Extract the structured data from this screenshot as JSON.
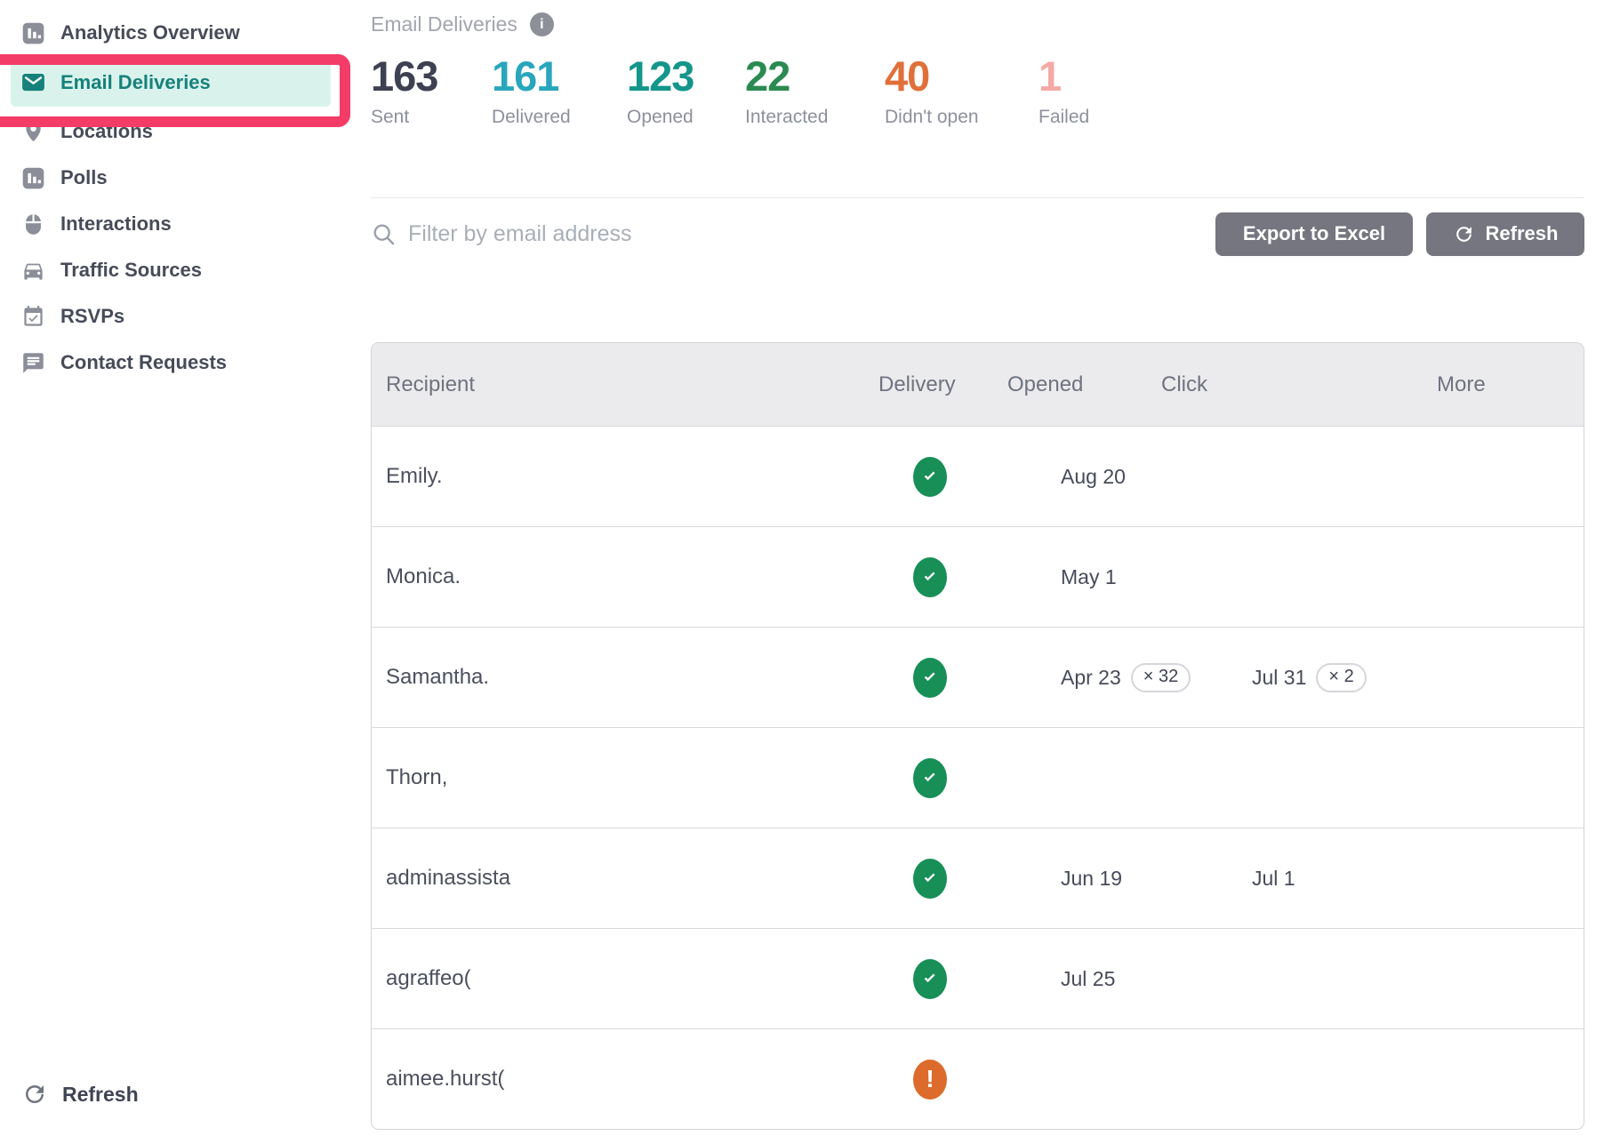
{
  "sidebar": {
    "items": [
      {
        "label": "Analytics Overview",
        "icon": "bar-chart",
        "active": false
      },
      {
        "label": "Email Deliveries",
        "icon": "envelope",
        "active": true
      },
      {
        "label": "Locations",
        "icon": "location-pin",
        "active": false
      },
      {
        "label": "Polls",
        "icon": "bar-chart",
        "active": false
      },
      {
        "label": "Interactions",
        "icon": "mouse",
        "active": false
      },
      {
        "label": "Traffic Sources",
        "icon": "car",
        "active": false
      },
      {
        "label": "RSVPs",
        "icon": "calendar-check",
        "active": false
      },
      {
        "label": "Contact Requests",
        "icon": "chat",
        "active": false
      }
    ],
    "refresh_label": "Refresh"
  },
  "header": {
    "title": "Email Deliveries",
    "info_icon": "info-icon",
    "info_glyph": "i"
  },
  "stats": [
    {
      "value": "163",
      "label": "Sent",
      "color": "#3d4152"
    },
    {
      "value": "161",
      "label": "Delivered",
      "color": "#29a6bc"
    },
    {
      "value": "123",
      "label": "Opened",
      "color": "#14968a"
    },
    {
      "value": "22",
      "label": "Interacted",
      "color": "#2b8a51"
    },
    {
      "value": "40",
      "label": "Didn't open",
      "color": "#e0703a"
    },
    {
      "value": "1",
      "label": "Failed",
      "color": "#f5a9a4"
    }
  ],
  "toolbar": {
    "filter_placeholder": "Filter by email address",
    "export_label": "Export to Excel",
    "refresh_label": "Refresh"
  },
  "table": {
    "columns": [
      "Recipient",
      "Delivery",
      "Opened",
      "Click",
      "More"
    ],
    "rows": [
      {
        "recipient": "Emily.",
        "delivery": "delivered",
        "opened": "Aug 20",
        "opened_count": "",
        "click": "",
        "click_count": ""
      },
      {
        "recipient": "Monica.",
        "delivery": "delivered",
        "opened": "May 1",
        "opened_count": "",
        "click": "",
        "click_count": ""
      },
      {
        "recipient": "Samantha.",
        "delivery": "delivered",
        "opened": "Apr 23",
        "opened_count": "× 32",
        "click": "Jul 31",
        "click_count": "× 2"
      },
      {
        "recipient": "Thorn,",
        "delivery": "delivered",
        "opened": "",
        "opened_count": "",
        "click": "",
        "click_count": ""
      },
      {
        "recipient": "adminassista",
        "delivery": "delivered",
        "opened": "Jun 19",
        "opened_count": "",
        "click": "Jul 1",
        "click_count": ""
      },
      {
        "recipient": "agraffeo(",
        "delivery": "delivered",
        "opened": "Jul 25",
        "opened_count": "",
        "click": "",
        "click_count": ""
      },
      {
        "recipient": "aimee.hurst(",
        "delivery": "failed",
        "opened": "",
        "opened_count": "",
        "click": "",
        "click_count": ""
      }
    ]
  },
  "colors": {
    "brand_teal": "#15817a",
    "active_item_bg": "#d9f3ec",
    "annotation_pink": "#f43c68",
    "delivered_green": "#178f57",
    "failed_orange": "#dd6b2b"
  }
}
